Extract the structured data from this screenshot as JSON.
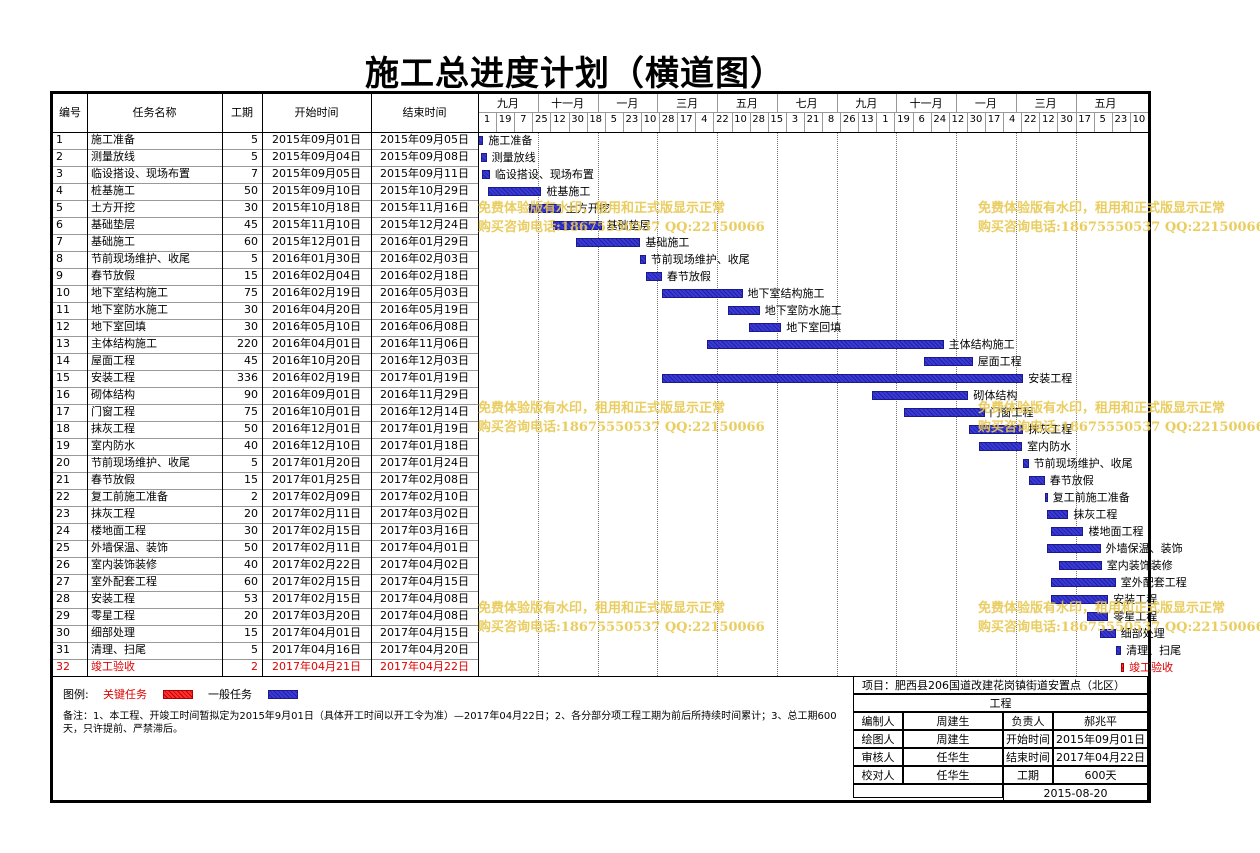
{
  "title": "施工总进度计划（横道图）",
  "headers": {
    "id": "编号",
    "name": "任务名称",
    "duration": "工期",
    "start": "开始时间",
    "end": "结束时间"
  },
  "timescale": {
    "months": [
      "九月",
      "十一月",
      "一月",
      "三月",
      "五月",
      "七月",
      "九月",
      "十一月",
      "一月",
      "三月",
      "五月"
    ],
    "ticks": [
      "1",
      "19",
      "7",
      "25",
      "12",
      "30",
      "18",
      "5",
      "23",
      "10",
      "28",
      "17",
      "4",
      "22",
      "10",
      "28",
      "15",
      "3",
      "21",
      "8",
      "26",
      "13",
      "1",
      "19",
      "6",
      "24",
      "12",
      "30",
      "17",
      "4",
      "22",
      "12",
      "30",
      "17",
      "5",
      "23",
      "10"
    ]
  },
  "chart_data": {
    "type": "table",
    "x_range": [
      "2015-09-01",
      "2017-05-16"
    ],
    "tasks": [
      {
        "id": "1",
        "name": "施工准备",
        "duration": "5",
        "start": "2015年09月01日",
        "end": "2015年09月05日",
        "s": "2015-09-01",
        "e": "2015-09-05",
        "label": "施工准备"
      },
      {
        "id": "2",
        "name": "测量放线",
        "duration": "5",
        "start": "2015年09月04日",
        "end": "2015年09月08日",
        "s": "2015-09-04",
        "e": "2015-09-08",
        "label": "测量放线"
      },
      {
        "id": "3",
        "name": "临设搭设、现场布置",
        "duration": "7",
        "start": "2015年09月05日",
        "end": "2015年09月11日",
        "s": "2015-09-05",
        "e": "2015-09-11",
        "label": "临设搭设、现场布置"
      },
      {
        "id": "4",
        "name": "桩基施工",
        "duration": "50",
        "start": "2015年09月10日",
        "end": "2015年10月29日",
        "s": "2015-09-10",
        "e": "2015-10-29",
        "label": "桩基施工"
      },
      {
        "id": "5",
        "name": "土方开挖",
        "duration": "30",
        "start": "2015年10月18日",
        "end": "2015年11月16日",
        "s": "2015-10-18",
        "e": "2015-11-16",
        "label": "土方开挖"
      },
      {
        "id": "6",
        "name": "基础垫层",
        "duration": "45",
        "start": "2015年11月10日",
        "end": "2015年12月24日",
        "s": "2015-11-10",
        "e": "2015-12-24",
        "label": "基础垫层"
      },
      {
        "id": "7",
        "name": "基础施工",
        "duration": "60",
        "start": "2015年12月01日",
        "end": "2016年01月29日",
        "s": "2015-12-01",
        "e": "2016-01-29",
        "label": "基础施工"
      },
      {
        "id": "8",
        "name": "节前现场维护、收尾",
        "duration": "5",
        "start": "2016年01月30日",
        "end": "2016年02月03日",
        "s": "2016-01-30",
        "e": "2016-02-03",
        "label": "节前现场维护、收尾"
      },
      {
        "id": "9",
        "name": "春节放假",
        "duration": "15",
        "start": "2016年02月04日",
        "end": "2016年02月18日",
        "s": "2016-02-04",
        "e": "2016-02-18",
        "label": "春节放假"
      },
      {
        "id": "10",
        "name": "地下室结构施工",
        "duration": "75",
        "start": "2016年02月19日",
        "end": "2016年05月03日",
        "s": "2016-02-19",
        "e": "2016-05-03",
        "label": "地下室结构施工"
      },
      {
        "id": "11",
        "name": "地下室防水施工",
        "duration": "30",
        "start": "2016年04月20日",
        "end": "2016年05月19日",
        "s": "2016-04-20",
        "e": "2016-05-19",
        "label": "地下室防水施工"
      },
      {
        "id": "12",
        "name": "地下室回填",
        "duration": "30",
        "start": "2016年05月10日",
        "end": "2016年06月08日",
        "s": "2016-05-10",
        "e": "2016-06-08",
        "label": "地下室回填"
      },
      {
        "id": "13",
        "name": "主体结构施工",
        "duration": "220",
        "start": "2016年04月01日",
        "end": "2016年11月06日",
        "s": "2016-04-01",
        "e": "2016-11-06",
        "label": "主体结构施工"
      },
      {
        "id": "14",
        "name": "屋面工程",
        "duration": "45",
        "start": "2016年10月20日",
        "end": "2016年12月03日",
        "s": "2016-10-20",
        "e": "2016-12-03",
        "label": "屋面工程"
      },
      {
        "id": "15",
        "name": "安装工程",
        "duration": "336",
        "start": "2016年02月19日",
        "end": "2017年01月19日",
        "s": "2016-02-19",
        "e": "2017-01-19",
        "label": "安装工程"
      },
      {
        "id": "16",
        "name": "砌体结构",
        "duration": "90",
        "start": "2016年09月01日",
        "end": "2016年11月29日",
        "s": "2016-09-01",
        "e": "2016-11-29",
        "label": "砌体结构"
      },
      {
        "id": "17",
        "name": "门窗工程",
        "duration": "75",
        "start": "2016年10月01日",
        "end": "2016年12月14日",
        "s": "2016-10-01",
        "e": "2016-12-14",
        "label": "门窗工程"
      },
      {
        "id": "18",
        "name": "抹灰工程",
        "duration": "50",
        "start": "2016年12月01日",
        "end": "2017年01月19日",
        "s": "2016-12-01",
        "e": "2017-01-19",
        "label": "抹灰工程"
      },
      {
        "id": "19",
        "name": "室内防水",
        "duration": "40",
        "start": "2016年12月10日",
        "end": "2017年01月18日",
        "s": "2016-12-10",
        "e": "2017-01-18",
        "label": "室内防水"
      },
      {
        "id": "20",
        "name": "节前现场维护、收尾",
        "duration": "5",
        "start": "2017年01月20日",
        "end": "2017年01月24日",
        "s": "2017-01-20",
        "e": "2017-01-24",
        "label": "节前现场维护、收尾"
      },
      {
        "id": "21",
        "name": "春节放假",
        "duration": "15",
        "start": "2017年01月25日",
        "end": "2017年02月08日",
        "s": "2017-01-25",
        "e": "2017-02-08",
        "label": "春节放假"
      },
      {
        "id": "22",
        "name": "复工前施工准备",
        "duration": "2",
        "start": "2017年02月09日",
        "end": "2017年02月10日",
        "s": "2017-02-09",
        "e": "2017-02-10",
        "label": "复工前施工准备"
      },
      {
        "id": "23",
        "name": "抹灰工程",
        "duration": "20",
        "start": "2017年02月11日",
        "end": "2017年03月02日",
        "s": "2017-02-11",
        "e": "2017-03-02",
        "label": "抹灰工程"
      },
      {
        "id": "24",
        "name": "楼地面工程",
        "duration": "30",
        "start": "2017年02月15日",
        "end": "2017年03月16日",
        "s": "2017-02-15",
        "e": "2017-03-16",
        "label": "楼地面工程"
      },
      {
        "id": "25",
        "name": "外墙保温、装饰",
        "duration": "50",
        "start": "2017年02月11日",
        "end": "2017年04月01日",
        "s": "2017-02-11",
        "e": "2017-04-01",
        "label": "外墙保温、装饰"
      },
      {
        "id": "26",
        "name": "室内装饰装修",
        "duration": "40",
        "start": "2017年02月22日",
        "end": "2017年04月02日",
        "s": "2017-02-22",
        "e": "2017-04-02",
        "label": "室内装饰装修"
      },
      {
        "id": "27",
        "name": "室外配套工程",
        "duration": "60",
        "start": "2017年02月15日",
        "end": "2017年04月15日",
        "s": "2017-02-15",
        "e": "2017-04-15",
        "label": "室外配套工程"
      },
      {
        "id": "28",
        "name": "安装工程",
        "duration": "53",
        "start": "2017年02月15日",
        "end": "2017年04月08日",
        "s": "2017-02-15",
        "e": "2017-04-08",
        "label": "安装工程"
      },
      {
        "id": "29",
        "name": "零星工程",
        "duration": "20",
        "start": "2017年03月20日",
        "end": "2017年04月08日",
        "s": "2017-03-20",
        "e": "2017-04-08",
        "label": "零星工程"
      },
      {
        "id": "30",
        "name": "细部处理",
        "duration": "15",
        "start": "2017年04月01日",
        "end": "2017年04月15日",
        "s": "2017-04-01",
        "e": "2017-04-15",
        "label": "细部处理"
      },
      {
        "id": "31",
        "name": "清理、扫尾",
        "duration": "5",
        "start": "2017年04月16日",
        "end": "2017年04月20日",
        "s": "2017-04-16",
        "e": "2017-04-20",
        "label": "清理、扫尾"
      },
      {
        "id": "32",
        "name": "竣工验收",
        "duration": "2",
        "start": "2017年04月21日",
        "end": "2017年04月22日",
        "s": "2017-04-21",
        "e": "2017-04-22",
        "label": "竣工验收",
        "critical": true
      }
    ]
  },
  "watermark": {
    "line1": "免费体验版有水印，租用和正式版显示正常",
    "line2": "购买咨询电话:18675550537 QQ:22150066"
  },
  "legend": {
    "label": "图例:",
    "critical": "关键任务",
    "normal": "一般任务",
    "critical_color": "#ff2020",
    "normal_color": "#2a2ac0"
  },
  "notes": "备注：1、本工程、开竣工时间暂拟定为2015年9月01日（具体开工时间以开工令为准）—2017年04月22日；2、各分部分项工程工期为前后所持续时间累计；3、总工期600天，只许提前、严禁滞后。",
  "info": {
    "project": "项目：肥西县206国道改建花岗镇街道安置点（北区）",
    "project2": "工程",
    "r1": [
      "编制人",
      "周建生",
      "负责人",
      "郝兆平"
    ],
    "r2": [
      "绘图人",
      "周建生",
      "开始时间",
      "2015年09月01日"
    ],
    "r3": [
      "审核人",
      "任华生",
      "结束时间",
      "2017年04月22日"
    ],
    "r4": [
      "校对人",
      "任华生",
      "工期",
      "600天"
    ],
    "date": "2015-08-20"
  }
}
